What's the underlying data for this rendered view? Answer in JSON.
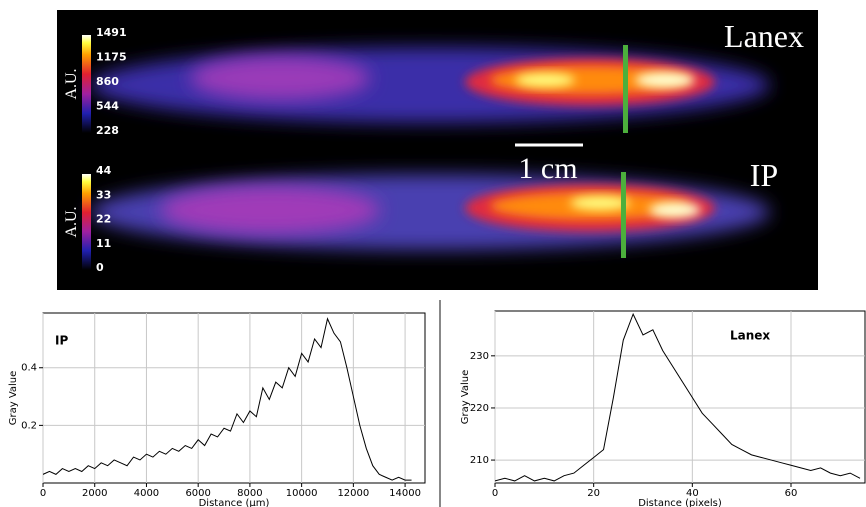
{
  "image_panels": [
    {
      "label": "Lanex",
      "colorbar_label": "A.U.",
      "colorbar_ticks": [
        1491,
        1175,
        860,
        544,
        228
      ]
    },
    {
      "label": "IP",
      "colorbar_label": "A.U.",
      "colorbar_ticks": [
        44,
        33,
        22,
        11,
        0
      ]
    }
  ],
  "scale_bar": "1 cm",
  "chart_data": [
    {
      "type": "line",
      "annotation": "IP",
      "x_label": "Distance (µm)",
      "y_label": "Gray Value",
      "grid": true,
      "xlim": [
        0,
        14770
      ],
      "ylim": [
        0,
        0.59
      ],
      "xticks": [
        0,
        2000,
        4000,
        6000,
        8000,
        10000,
        12000,
        14000
      ],
      "yticks": [
        0.2,
        0.4
      ],
      "x": [
        0,
        250,
        500,
        750,
        1000,
        1250,
        1500,
        1750,
        2000,
        2250,
        2500,
        2750,
        3000,
        3250,
        3500,
        3750,
        4000,
        4250,
        4500,
        4750,
        5000,
        5250,
        5500,
        5750,
        6000,
        6250,
        6500,
        6750,
        7000,
        7250,
        7500,
        7750,
        8000,
        8250,
        8500,
        8750,
        9000,
        9250,
        9500,
        9750,
        10000,
        10250,
        10500,
        10750,
        11000,
        11250,
        11500,
        11750,
        12000,
        12250,
        12500,
        12750,
        13000,
        13250,
        13500,
        13750,
        14000,
        14250
      ],
      "series": [
        {
          "color": "#000000",
          "values": [
            0.03,
            0.04,
            0.03,
            0.05,
            0.04,
            0.05,
            0.04,
            0.06,
            0.05,
            0.07,
            0.06,
            0.08,
            0.07,
            0.06,
            0.09,
            0.08,
            0.1,
            0.09,
            0.11,
            0.1,
            0.12,
            0.11,
            0.13,
            0.12,
            0.15,
            0.13,
            0.17,
            0.16,
            0.19,
            0.18,
            0.24,
            0.21,
            0.25,
            0.23,
            0.33,
            0.29,
            0.35,
            0.33,
            0.4,
            0.37,
            0.45,
            0.42,
            0.5,
            0.47,
            0.57,
            0.52,
            0.49,
            0.4,
            0.3,
            0.2,
            0.12,
            0.06,
            0.03,
            0.02,
            0.01,
            0.02,
            0.01,
            0.01
          ]
        }
      ]
    },
    {
      "type": "line",
      "annotation": "Lanex",
      "x_label": "Distance (pixels)",
      "y_label": "Gray Value",
      "grid": true,
      "xlim": [
        0,
        75
      ],
      "ylim": [
        205.6,
        238.6
      ],
      "xticks": [
        0,
        20,
        40,
        60
      ],
      "yticks": [
        210,
        220,
        230
      ],
      "x": [
        0,
        2,
        4,
        6,
        8,
        10,
        12,
        14,
        16,
        18,
        20,
        22,
        24,
        26,
        28,
        30,
        32,
        34,
        36,
        38,
        40,
        42,
        44,
        46,
        48,
        50,
        52,
        54,
        56,
        58,
        60,
        62,
        64,
        66,
        68,
        70,
        72,
        74
      ],
      "series": [
        {
          "color": "#000000",
          "values": [
            206,
            206.5,
            206,
            207,
            206,
            206.5,
            206,
            207,
            207.5,
            209,
            210.5,
            212,
            222,
            233,
            238,
            234,
            235,
            231,
            228,
            225,
            222,
            219,
            217,
            215,
            213,
            212,
            211,
            210.5,
            210,
            209.5,
            209,
            208.5,
            208,
            208.5,
            207.5,
            207,
            207.5,
            206.5
          ]
        }
      ]
    }
  ]
}
